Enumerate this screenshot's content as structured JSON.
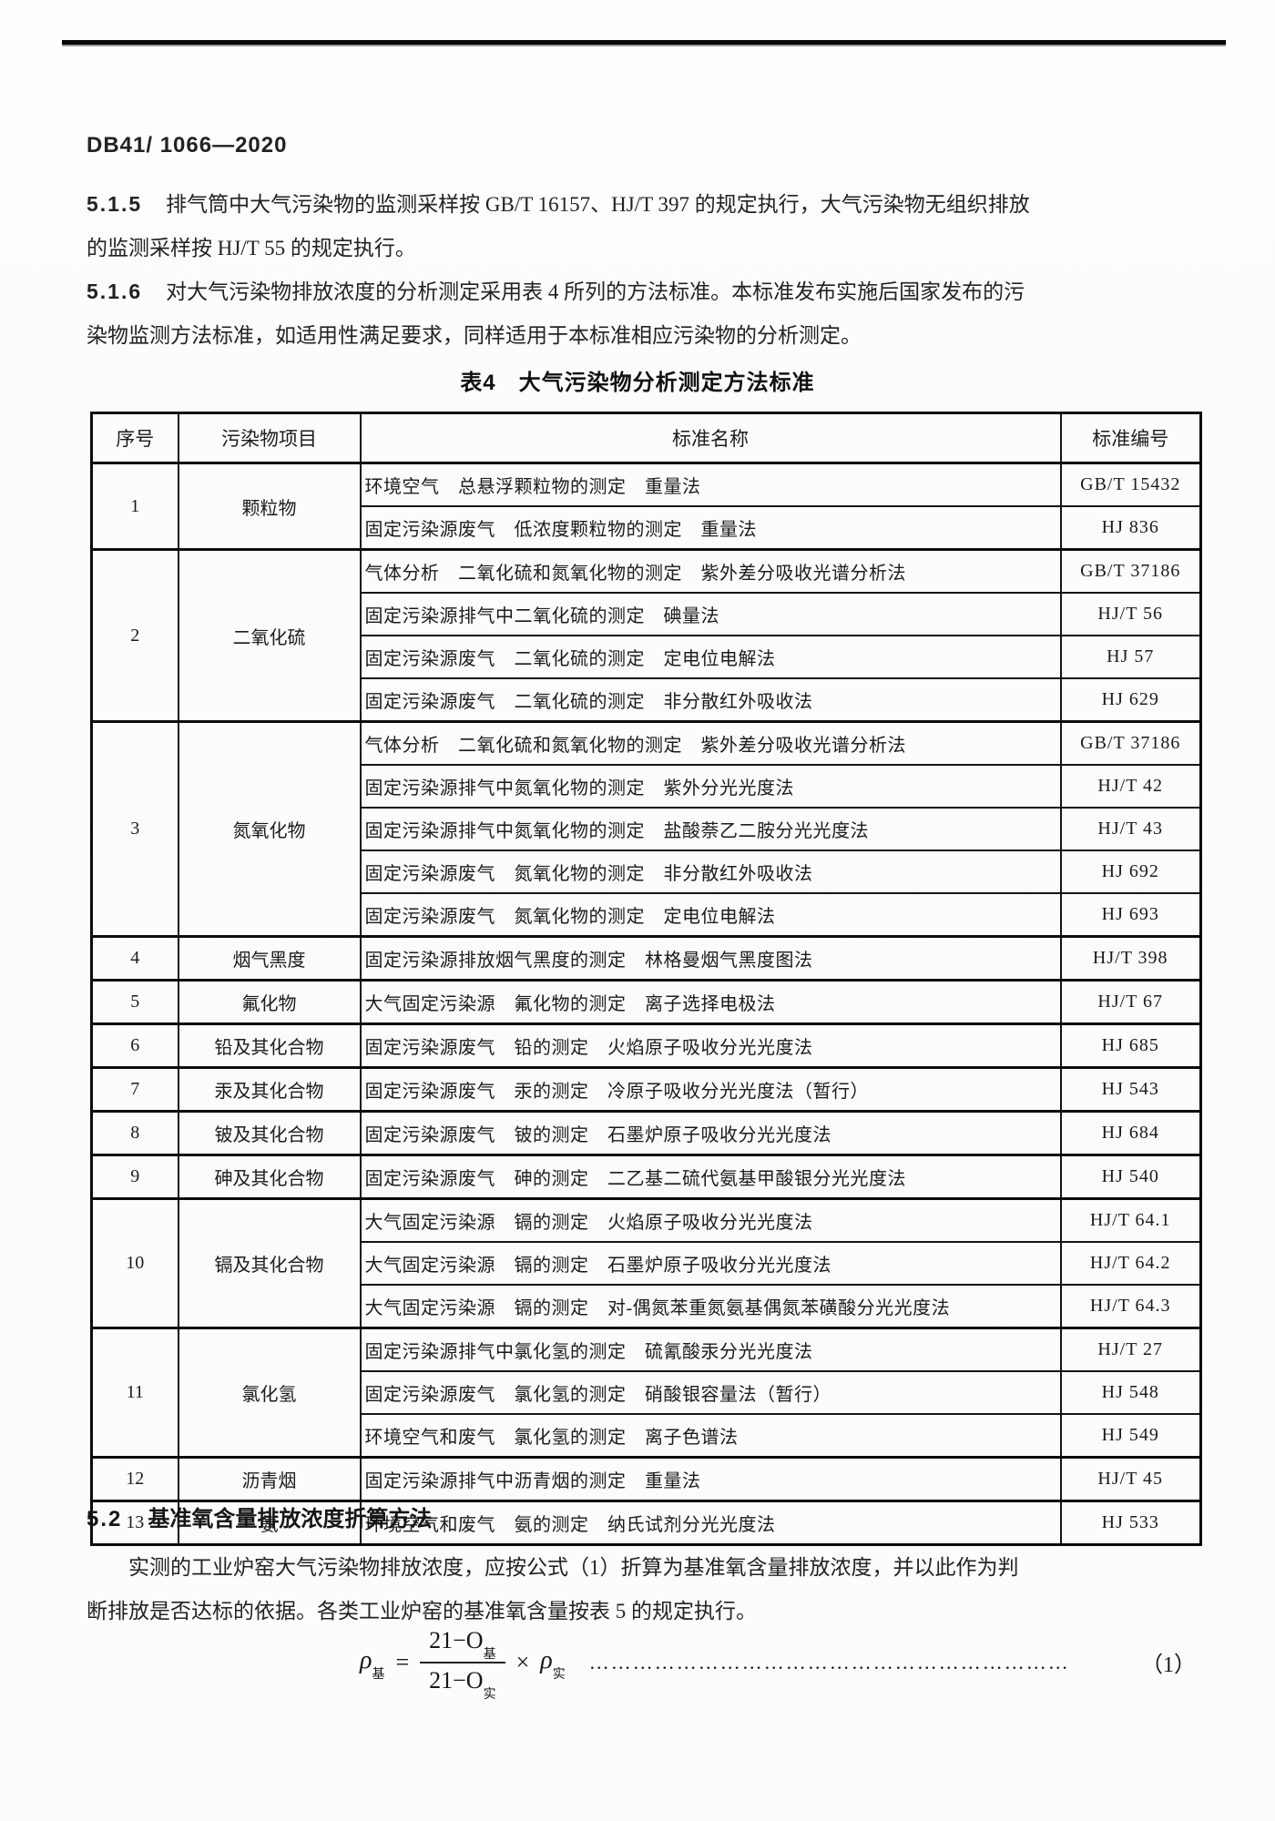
{
  "page": {
    "doc_number": "DB41/ 1066—2020"
  },
  "paragraphs": {
    "p515": {
      "label": "5.1.5",
      "lines": [
        "排气筒中大气污染物的监测采样按 GB/T 16157、HJ/T 397 的规定执行，大气污染物无组织排放",
        "的监测采样按 HJ/T 55 的规定执行。"
      ]
    },
    "p516": {
      "label": "5.1.6",
      "lines": [
        "对大气污染物排放浓度的分析测定采用表 4 所列的方法标准。本标准发布实施后国家发布的污",
        "染物监测方法标准，如适用性满足要求，同样适用于本标准相应污染物的分析测定。"
      ]
    }
  },
  "table": {
    "title": "表4　大气污染物分析测定方法标准",
    "headers": [
      "序号",
      "污染物项目",
      "标准名称",
      "标准编号"
    ],
    "groups": [
      {
        "no": "1",
        "pollutant": "颗粒物",
        "rows": [
          {
            "name": "环境空气　总悬浮颗粒物的测定　重量法",
            "code": "GB/T 15432"
          },
          {
            "name": "固定污染源废气　低浓度颗粒物的测定　重量法",
            "code": "HJ 836"
          }
        ]
      },
      {
        "no": "2",
        "pollutant": "二氧化硫",
        "rows": [
          {
            "name": "气体分析　二氧化硫和氮氧化物的测定　紫外差分吸收光谱分析法",
            "code": "GB/T 37186"
          },
          {
            "name": "固定污染源排气中二氧化硫的测定　碘量法",
            "code": "HJ/T 56"
          },
          {
            "name": "固定污染源废气　二氧化硫的测定　定电位电解法",
            "code": "HJ 57"
          },
          {
            "name": "固定污染源废气　二氧化硫的测定　非分散红外吸收法",
            "code": "HJ 629"
          }
        ]
      },
      {
        "no": "3",
        "pollutant": "氮氧化物",
        "rows": [
          {
            "name": "气体分析　二氧化硫和氮氧化物的测定　紫外差分吸收光谱分析法",
            "code": "GB/T 37186"
          },
          {
            "name": "固定污染源排气中氮氧化物的测定　紫外分光光度法",
            "code": "HJ/T 42"
          },
          {
            "name": "固定污染源排气中氮氧化物的测定　盐酸萘乙二胺分光光度法",
            "code": "HJ/T 43"
          },
          {
            "name": "固定污染源废气　氮氧化物的测定　非分散红外吸收法",
            "code": "HJ 692"
          },
          {
            "name": "固定污染源废气　氮氧化物的测定　定电位电解法",
            "code": "HJ 693"
          }
        ]
      },
      {
        "no": "4",
        "pollutant": "烟气黑度",
        "rows": [
          {
            "name": "固定污染源排放烟气黑度的测定　林格曼烟气黑度图法",
            "code": "HJ/T 398"
          }
        ]
      },
      {
        "no": "5",
        "pollutant": "氟化物",
        "rows": [
          {
            "name": "大气固定污染源　氟化物的测定　离子选择电极法",
            "code": "HJ/T 67"
          }
        ]
      },
      {
        "no": "6",
        "pollutant": "铅及其化合物",
        "rows": [
          {
            "name": "固定污染源废气　铅的测定　火焰原子吸收分光光度法",
            "code": "HJ 685"
          }
        ]
      },
      {
        "no": "7",
        "pollutant": "汞及其化合物",
        "rows": [
          {
            "name": "固定污染源废气　汞的测定　冷原子吸收分光光度法（暂行）",
            "code": "HJ 543"
          }
        ]
      },
      {
        "no": "8",
        "pollutant": "铍及其化合物",
        "rows": [
          {
            "name": "固定污染源废气　铍的测定　石墨炉原子吸收分光光度法",
            "code": "HJ 684"
          }
        ]
      },
      {
        "no": "9",
        "pollutant": "砷及其化合物",
        "rows": [
          {
            "name": "固定污染源废气　砷的测定　二乙基二硫代氨基甲酸银分光光度法",
            "code": "HJ 540"
          }
        ]
      },
      {
        "no": "10",
        "pollutant": "镉及其化合物",
        "rows": [
          {
            "name": "大气固定污染源　镉的测定　火焰原子吸收分光光度法",
            "code": "HJ/T 64.1"
          },
          {
            "name": "大气固定污染源　镉的测定　石墨炉原子吸收分光光度法",
            "code": "HJ/T 64.2"
          },
          {
            "name": "大气固定污染源　镉的测定　对-偶氮苯重氮氨基偶氮苯磺酸分光光度法",
            "code": "HJ/T 64.3"
          }
        ]
      },
      {
        "no": "11",
        "pollutant": "氯化氢",
        "rows": [
          {
            "name": "固定污染源排气中氯化氢的测定　硫氰酸汞分光光度法",
            "code": "HJ/T 27"
          },
          {
            "name": "固定污染源废气　氯化氢的测定　硝酸银容量法（暂行）",
            "code": "HJ 548"
          },
          {
            "name": "环境空气和废气　氯化氢的测定　离子色谱法",
            "code": "HJ 549"
          }
        ]
      },
      {
        "no": "12",
        "pollutant": "沥青烟",
        "rows": [
          {
            "name": "固定污染源排气中沥青烟的测定　重量法",
            "code": "HJ/T 45"
          }
        ]
      },
      {
        "no": "13",
        "pollutant": "氨",
        "rows": [
          {
            "name": "环境空气和废气　氨的测定　纳氏试剂分光光度法",
            "code": "HJ 533"
          }
        ]
      }
    ]
  },
  "section52": {
    "label": "5.2",
    "title": "基准氧含量排放浓度折算方法",
    "lines": [
      "实测的工业炉窑大气污染物排放浓度，应按公式（1）折算为基准氧含量排放浓度，并以此作为判",
      "断排放是否达标的依据。各类工业炉窑的基准氧含量按表 5 的规定执行。"
    ]
  },
  "formula": {
    "lhs": "ρ",
    "lhs_sub": "基",
    "equals": "=",
    "numerator": "21−O",
    "numerator_sub": "基",
    "denominator": "21−O",
    "denominator_sub": "实",
    "times": "×",
    "rhs": "ρ",
    "rhs_sub": "实",
    "dots": "…………………………………………………………",
    "number": "（1）"
  }
}
